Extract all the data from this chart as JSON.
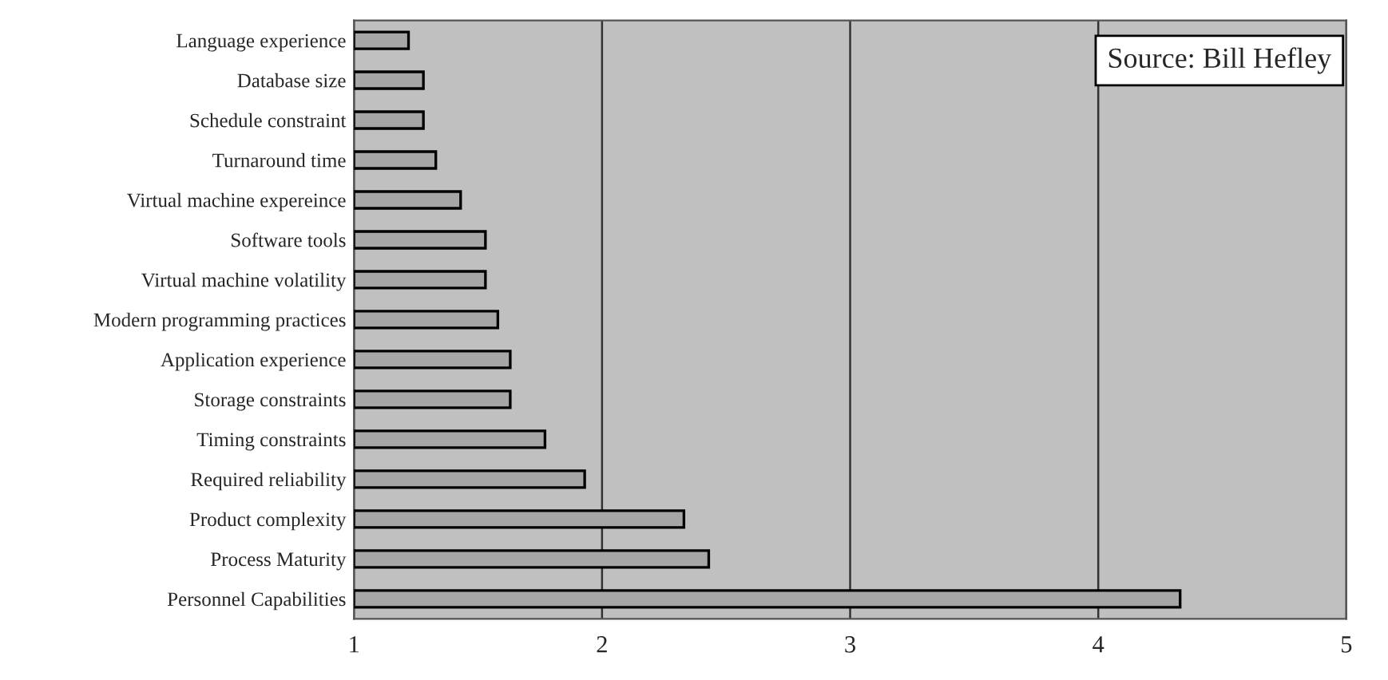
{
  "chart_data": {
    "type": "bar",
    "orientation": "horizontal",
    "categories": [
      "Language experience",
      "Database size",
      "Schedule constraint",
      "Turnaround time",
      "Virtual machine expereince",
      "Software tools",
      "Virtual machine volatility",
      "Modern programming practices",
      "Application experience",
      "Storage constraints",
      "Timing constraints",
      "Required reliability",
      "Product complexity",
      "Process Maturity",
      "Personnel Capabilities"
    ],
    "values": [
      1.22,
      1.28,
      1.28,
      1.33,
      1.43,
      1.53,
      1.53,
      1.58,
      1.63,
      1.63,
      1.77,
      1.93,
      2.33,
      2.43,
      4.33
    ],
    "color": "#a6a6a6",
    "xlim": [
      1,
      5
    ],
    "xticks": [
      1,
      2,
      3,
      4,
      5
    ],
    "grid": "x",
    "legend": false,
    "annotations": [
      "Source: Bill Hefley"
    ]
  }
}
